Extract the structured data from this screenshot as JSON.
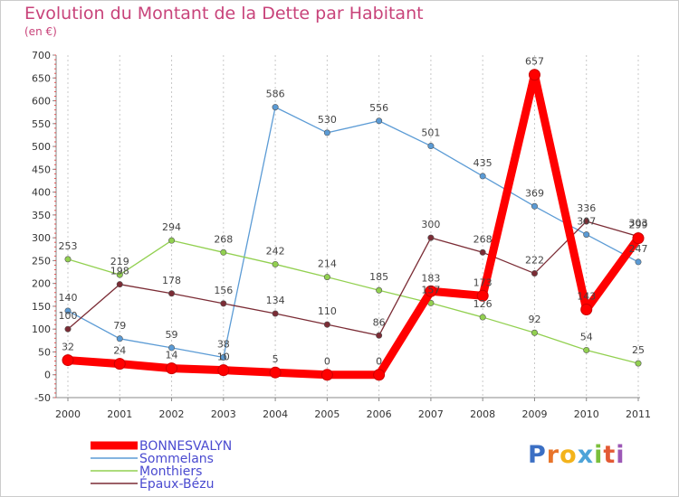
{
  "chart_data": {
    "type": "line",
    "title": "Evolution du Montant de la Dette par Habitant",
    "ylabel": "(en €)",
    "xlabel": "",
    "x": [
      "2000",
      "2001",
      "2002",
      "2003",
      "2004",
      "2005",
      "2006",
      "2007",
      "2008",
      "2009",
      "2010",
      "2011"
    ],
    "ylim": [
      -50,
      700
    ],
    "ytick_step": 50,
    "grid": "vertical dashed lines at x ticks",
    "legend_position": "bottom-left",
    "series": [
      {
        "name": "BONNESVALYN",
        "color": "#ff0000",
        "values": [
          32,
          24,
          14,
          10,
          5,
          0,
          0,
          183,
          173,
          657,
          143,
          299
        ],
        "labels": [
          "32",
          "24",
          "14",
          "10",
          "5",
          "0",
          "0",
          "183",
          "173",
          "657",
          "143",
          "299"
        ]
      },
      {
        "name": "Sommelans",
        "color": "#5b9bd5",
        "values": [
          140,
          79,
          59,
          38,
          586,
          530,
          556,
          501,
          435,
          369,
          307,
          247
        ],
        "labels": [
          "140",
          "79",
          "59",
          "38",
          "586",
          "530",
          "556",
          "501",
          "435",
          "369",
          "307",
          "247"
        ]
      },
      {
        "name": "Monthiers",
        "color": "#92d050",
        "values": [
          253,
          219,
          294,
          268,
          242,
          214,
          185,
          157,
          126,
          92,
          54,
          25
        ],
        "labels": [
          "253",
          "219",
          "294",
          "268",
          "242",
          "214",
          "185",
          "157",
          "126",
          "92",
          "54",
          "25"
        ]
      },
      {
        "name": "Épaux-Bézu",
        "color": "#7b2c35",
        "values": [
          100,
          198,
          178,
          156,
          134,
          110,
          86,
          300,
          268,
          222,
          336,
          303
        ],
        "labels": [
          "100",
          "198",
          "178",
          "156",
          "134",
          "110",
          "86",
          "300",
          "268",
          "222",
          "336",
          "303"
        ]
      }
    ]
  },
  "logo": {
    "letters": [
      "P",
      "r",
      "o",
      "x",
      "i",
      "t",
      "i"
    ],
    "colors": [
      "#3b6fc4",
      "#e8742a",
      "#f3b31b",
      "#4da3d8",
      "#7bbf3c",
      "#e35a34",
      "#9c58b6"
    ]
  }
}
